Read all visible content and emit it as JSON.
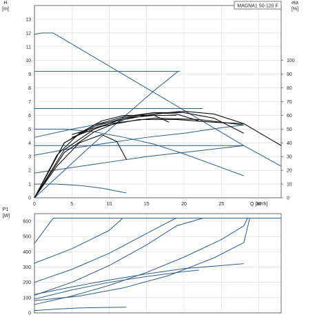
{
  "chart_data": [
    {
      "type": "line",
      "title": "MAGNA1 50-120 F",
      "ylabel": "H",
      "yunit": "[m]",
      "xlabel": "Q",
      "xunit": "[m³/h]",
      "y2label": "eta",
      "y2unit": "[%]",
      "xlim": [
        0,
        33
      ],
      "ylim": [
        0,
        14
      ],
      "y2lim": [
        0,
        140
      ],
      "x_ticks": [
        "0",
        "5",
        "10",
        "15",
        "20",
        "25",
        "30"
      ],
      "y_ticks": [
        "0",
        "1",
        "2",
        "3",
        "4",
        "5",
        "6",
        "7",
        "8",
        "9",
        "10",
        "11",
        "12",
        "13"
      ],
      "y2_ticks": [
        "0",
        "10",
        "20",
        "30",
        "40",
        "50",
        "60",
        "70",
        "80",
        "90",
        "100"
      ],
      "grid": true,
      "series": [
        {
          "group": "head",
          "color": "#2a5a8c",
          "points": [
            [
              0,
              11.9
            ],
            [
              1,
              12.0
            ],
            [
              2.5,
              12.0
            ],
            [
              28,
              3.8
            ],
            [
              33,
              2.3
            ]
          ]
        },
        {
          "group": "head",
          "color": "#2a5a8c",
          "points": [
            [
              0,
              9.2
            ],
            [
              19.5,
              9.2
            ]
          ]
        },
        {
          "group": "head",
          "color": "#2a5a8c",
          "points": [
            [
              0,
              6.5
            ],
            [
              22.5,
              6.5
            ]
          ]
        },
        {
          "group": "head",
          "color": "#2a5a8c",
          "points": [
            [
              0,
              3.8
            ],
            [
              28,
              3.8
            ]
          ]
        },
        {
          "group": "head",
          "color": "#2a5a8c",
          "points": [
            [
              0,
              5.0
            ],
            [
              4,
              5.0
            ],
            [
              8,
              4.8
            ],
            [
              12,
              4.4
            ],
            [
              16,
              3.9
            ],
            [
              20,
              3.2
            ],
            [
              24,
              2.4
            ],
            [
              28,
              1.6
            ]
          ]
        },
        {
          "group": "head",
          "color": "#2a5a8c",
          "points": [
            [
              0,
              1.0
            ],
            [
              3,
              1.0
            ],
            [
              6,
              0.9
            ],
            [
              9,
              0.7
            ],
            [
              12.3,
              0.35
            ]
          ]
        },
        {
          "group": "head",
          "color": "#2a5a8c",
          "points": [
            [
              0,
              0
            ],
            [
              4,
              2.0
            ],
            [
              8,
              4.0
            ],
            [
              12,
              5.9
            ],
            [
              16,
              7.8
            ],
            [
              19.2,
              9.2
            ]
          ]
        },
        {
          "group": "head",
          "color": "#2a5a8c",
          "points": [
            [
              0,
              1.8
            ],
            [
              5,
              2.2
            ],
            [
              10,
              2.6
            ],
            [
              15,
              3.0
            ],
            [
              20,
              3.3
            ],
            [
              28,
              3.8
            ]
          ]
        },
        {
          "group": "head",
          "color": "#2a5a8c",
          "points": [
            [
              0,
              4.4
            ],
            [
              5,
              5.0
            ],
            [
              10,
              5.5
            ],
            [
              15,
              6.0
            ],
            [
              19.5,
              6.3
            ]
          ]
        },
        {
          "group": "head",
          "color": "#2a5a8c",
          "points": [
            [
              0,
              3.1
            ],
            [
              5,
              3.6
            ],
            [
              10,
              4.0
            ],
            [
              15,
              4.4
            ],
            [
              20,
              4.7
            ],
            [
              25,
              5.1
            ],
            [
              28,
              5.3
            ]
          ]
        },
        {
          "group": "eta",
          "color": "#111111",
          "points": [
            [
              0,
              0
            ],
            [
              3,
              23
            ],
            [
              6,
              40
            ],
            [
              9,
              46
            ],
            [
              11,
              41
            ],
            [
              12.3,
              28
            ]
          ]
        },
        {
          "group": "eta",
          "color": "#111111",
          "points": [
            [
              0,
              0
            ],
            [
              4,
              33
            ],
            [
              8,
              48
            ],
            [
              12,
              57
            ],
            [
              16,
              61
            ],
            [
              20,
              63
            ],
            [
              24,
              61
            ],
            [
              28,
              54
            ],
            [
              33,
              38
            ]
          ]
        },
        {
          "group": "eta",
          "color": "#111111",
          "points": [
            [
              0,
              0
            ],
            [
              4,
              35
            ],
            [
              8,
              50
            ],
            [
              12,
              58
            ],
            [
              16,
              62
            ],
            [
              20,
              62
            ],
            [
              24,
              58
            ],
            [
              28,
              47
            ]
          ]
        },
        {
          "group": "eta",
          "color": "#111111",
          "points": [
            [
              0,
              0
            ],
            [
              4,
              40
            ],
            [
              8,
              53
            ],
            [
              12,
              59
            ],
            [
              16,
              62
            ],
            [
              19,
              61
            ],
            [
              22,
              56
            ]
          ]
        },
        {
          "group": "eta",
          "color": "#111111",
          "points": [
            [
              0,
              0
            ],
            [
              4,
              40
            ],
            [
              8,
              52
            ],
            [
              12,
              58
            ],
            [
              16,
              60
            ],
            [
              19,
              60
            ]
          ]
        },
        {
          "group": "eta",
          "color": "#111111",
          "points": [
            [
              0,
              0
            ],
            [
              3,
              31
            ],
            [
              6,
              47
            ],
            [
              9,
              56
            ],
            [
              12,
              60
            ],
            [
              16,
              60
            ],
            [
              18,
              55
            ]
          ]
        },
        {
          "group": "eta",
          "color": "#111111",
          "points": [
            [
              5,
              44
            ],
            [
              9,
              52
            ],
            [
              14,
              57
            ],
            [
              19,
              57
            ],
            [
              24,
              55
            ],
            [
              28,
              54
            ]
          ]
        },
        {
          "group": "eta",
          "color": "#111111",
          "points": [
            [
              5,
              46
            ],
            [
              10,
              54
            ],
            [
              16,
              58
            ],
            [
              22,
              57
            ],
            [
              28,
              53
            ]
          ]
        }
      ]
    },
    {
      "type": "line",
      "ylabel": "P1",
      "yunit": "[W]",
      "xlim": [
        0,
        33
      ],
      "ylim": [
        0,
        650
      ],
      "y_ticks": [
        "0",
        "100",
        "200",
        "300",
        "400",
        "500",
        "600"
      ],
      "grid": true,
      "series": [
        {
          "color": "#2a5a8c",
          "points": [
            [
              0,
              455
            ],
            [
              2.5,
              620
            ],
            [
              33,
              620
            ]
          ]
        },
        {
          "color": "#2a5a8c",
          "points": [
            [
              0,
              325
            ],
            [
              5,
              420
            ],
            [
              10,
              540
            ],
            [
              11.8,
              620
            ]
          ]
        },
        {
          "color": "#2a5a8c",
          "points": [
            [
              0,
              200
            ],
            [
              5,
              285
            ],
            [
              10,
              390
            ],
            [
              15,
              520
            ],
            [
              18.9,
              620
            ]
          ]
        },
        {
          "color": "#2a5a8c",
          "points": [
            [
              0,
              115
            ],
            [
              5,
              200
            ],
            [
              10,
              310
            ],
            [
              15,
              445
            ],
            [
              19,
              570
            ],
            [
              22.5,
              620
            ]
          ]
        },
        {
          "color": "#2a5a8c",
          "points": [
            [
              0,
              55
            ],
            [
              5,
              110
            ],
            [
              10,
              180
            ],
            [
              15,
              265
            ],
            [
              20,
              365
            ],
            [
              25,
              480
            ],
            [
              28,
              570
            ],
            [
              28.5,
              620
            ]
          ]
        },
        {
          "color": "#2a5a8c",
          "points": [
            [
              0,
              80
            ],
            [
              6,
              110
            ],
            [
              12,
              165
            ],
            [
              18,
              245
            ],
            [
              24,
              360
            ],
            [
              28,
              460
            ],
            [
              28.8,
              620
            ]
          ]
        },
        {
          "color": "#2a5a8c",
          "points": [
            [
              0,
              120
            ],
            [
              5,
              170
            ],
            [
              10,
              215
            ],
            [
              15,
              255
            ],
            [
              20,
              290
            ],
            [
              25,
              310
            ],
            [
              28,
              322
            ]
          ]
        },
        {
          "color": "#2a5a8c",
          "points": [
            [
              0,
              90
            ],
            [
              5,
              150
            ],
            [
              10,
              200
            ],
            [
              15,
              238
            ],
            [
              20,
              270
            ],
            [
              22,
              280
            ]
          ]
        },
        {
          "color": "#2a5a8c",
          "points": [
            [
              0,
              15
            ],
            [
              3,
              25
            ],
            [
              6,
              32
            ],
            [
              9,
              35
            ],
            [
              12.3,
              37
            ]
          ]
        }
      ]
    }
  ]
}
